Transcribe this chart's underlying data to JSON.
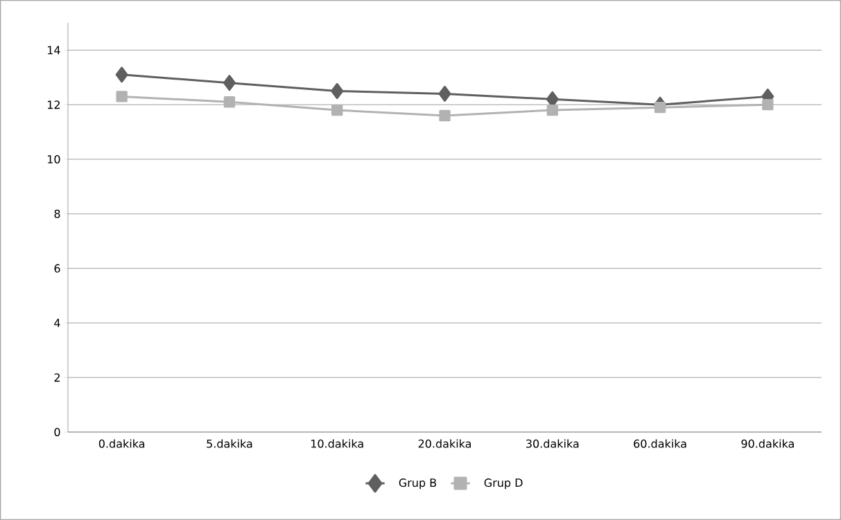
{
  "chart_data": {
    "type": "line",
    "categories": [
      "0.dakika",
      "5.dakika",
      "10.dakika",
      "20.dakika",
      "30.dakika",
      "60.dakika",
      "90.dakika"
    ],
    "series": [
      {
        "name": "Grup B",
        "color": "#5f5f5f",
        "marker": "diamond",
        "values": [
          13.1,
          12.8,
          12.5,
          12.4,
          12.2,
          12.0,
          12.3
        ]
      },
      {
        "name": "Grup D",
        "color": "#b2b2b2",
        "marker": "square",
        "values": [
          12.3,
          12.1,
          11.8,
          11.6,
          11.8,
          11.9,
          12.0
        ]
      }
    ],
    "ylim": [
      0,
      15
    ],
    "yticks": [
      0,
      2,
      4,
      6,
      8,
      10,
      12,
      14
    ],
    "grid": "y",
    "legend": "bottom",
    "line_style": "solid"
  }
}
